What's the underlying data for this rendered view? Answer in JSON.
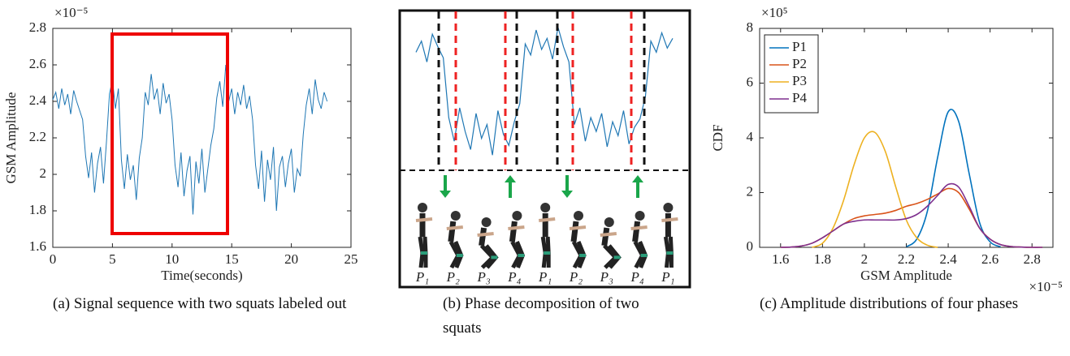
{
  "chart_data": [
    {
      "type": "line",
      "caption": "(a) Signal sequence with two squats labeled out",
      "xlabel": "Time(seconds)",
      "ylabel": "GSM Amplitude",
      "y_multiplier": "×10⁻⁵",
      "xlim": [
        0,
        25
      ],
      "xticks": [
        0,
        5,
        10,
        15,
        20,
        25
      ],
      "ylim": [
        1.6,
        2.8
      ],
      "yticks": [
        1.6,
        1.8,
        2,
        2.2,
        2.4,
        2.6,
        2.8
      ],
      "x": [
        0,
        0.25,
        0.5,
        0.75,
        1,
        1.25,
        1.5,
        1.75,
        2,
        2.25,
        2.5,
        2.75,
        3,
        3.25,
        3.5,
        3.75,
        4,
        4.25,
        4.5,
        4.75,
        5,
        5.25,
        5.5,
        5.75,
        6,
        6.25,
        6.5,
        6.75,
        7,
        7.25,
        7.5,
        7.75,
        8,
        8.25,
        8.5,
        8.75,
        9,
        9.25,
        9.5,
        9.75,
        10,
        10.25,
        10.5,
        10.75,
        11,
        11.25,
        11.5,
        11.75,
        12,
        12.25,
        12.5,
        12.75,
        13,
        13.25,
        13.5,
        13.75,
        14,
        14.25,
        14.5,
        14.75,
        15,
        15.25,
        15.5,
        15.75,
        16,
        16.25,
        16.5,
        16.75,
        17,
        17.25,
        17.5,
        17.75,
        18,
        18.25,
        18.5,
        18.75,
        19,
        19.25,
        19.5,
        19.75,
        20,
        20.25,
        20.5,
        20.75,
        21,
        21.25,
        21.5,
        21.75,
        22,
        22.25,
        22.5,
        22.75,
        23
      ],
      "series": [
        {
          "color": "#1f77b4",
          "values": [
            2.41,
            2.45,
            2.36,
            2.47,
            2.38,
            2.44,
            2.33,
            2.46,
            2.4,
            2.35,
            2.3,
            2.1,
            1.98,
            2.12,
            1.9,
            2.06,
            2.15,
            1.95,
            2.18,
            2.44,
            2.52,
            2.36,
            2.47,
            2.08,
            1.92,
            2.11,
            1.97,
            2.05,
            1.86,
            2.09,
            2.2,
            2.45,
            2.38,
            2.55,
            2.41,
            2.47,
            2.33,
            2.5,
            2.39,
            2.44,
            2.3,
            2.05,
            1.93,
            2.12,
            1.88,
            2.02,
            2.1,
            1.78,
            2.07,
            1.95,
            2.14,
            1.9,
            2.03,
            2.16,
            2.25,
            2.42,
            2.51,
            2.37,
            2.6,
            2.4,
            2.47,
            2.33,
            2.45,
            2.38,
            2.49,
            2.36,
            2.43,
            2.3,
            2.05,
            1.92,
            2.13,
            1.85,
            2.08,
            1.97,
            2.15,
            1.8,
            2.04,
            2.1,
            1.93,
            2.06,
            2.14,
            1.9,
            2.03,
            1.99,
            2.22,
            2.38,
            2.47,
            2.33,
            2.52,
            2.41,
            2.36,
            2.45,
            2.4
          ]
        }
      ]
    },
    {
      "type": "phase",
      "caption": "(b) Phase decomposition of two squats",
      "axes": false,
      "ylim": [
        1.8,
        2.85
      ],
      "color": "#1f77b4",
      "values": [
        2.62,
        2.7,
        2.55,
        2.75,
        2.66,
        2.58,
        2.15,
        1.98,
        2.22,
        2.05,
        1.92,
        2.18,
        2.0,
        2.1,
        1.88,
        2.2,
        2.03,
        1.95,
        2.12,
        2.25,
        2.68,
        2.6,
        2.78,
        2.64,
        2.72,
        2.57,
        2.8,
        2.66,
        2.55,
        2.1,
        2.22,
        1.98,
        2.15,
        2.05,
        2.18,
        1.94,
        2.12,
        2.02,
        2.2,
        1.96,
        2.08,
        2.14,
        2.3,
        2.7,
        2.62,
        2.76,
        2.65,
        2.72
      ],
      "phases": [
        "P₁",
        "P₂",
        "P₃",
        "P₄",
        "P₁",
        "P₂",
        "P₃",
        "P₄",
        "P₁"
      ]
    },
    {
      "type": "smooth-line",
      "caption": "(c) Amplitude distributions of four phases",
      "xlabel": "GSM Amplitude",
      "ylabel": "CDF",
      "x_multiplier": "×10⁻⁵",
      "y_multiplier": "×10⁵",
      "xlim": [
        1.5,
        2.9
      ],
      "xticks": [
        1.6,
        1.8,
        2,
        2.2,
        2.4,
        2.6,
        2.8
      ],
      "ylim": [
        0,
        8
      ],
      "yticks": [
        0,
        2,
        4,
        6,
        8
      ],
      "legend": "top-left",
      "x": [
        1.6,
        1.65,
        1.7,
        1.75,
        1.8,
        1.85,
        1.9,
        1.95,
        2,
        2.05,
        2.1,
        2.15,
        2.2,
        2.25,
        2.3,
        2.35,
        2.4,
        2.45,
        2.5,
        2.55,
        2.6,
        2.65,
        2.7,
        2.75,
        2.8,
        2.85
      ],
      "series": [
        {
          "name": "P1",
          "color": "#0072bd",
          "values": [
            null,
            null,
            null,
            null,
            null,
            null,
            null,
            null,
            null,
            null,
            null,
            null,
            0.02,
            0.3,
            1.3,
            3.3,
            4.95,
            4.6,
            2.7,
            0.9,
            0.2,
            0.02,
            null,
            null,
            null,
            null
          ]
        },
        {
          "name": "P2",
          "color": "#d95319",
          "values": [
            0,
            0.01,
            0.05,
            0.15,
            0.35,
            0.6,
            0.85,
            1.05,
            1.15,
            1.2,
            1.25,
            1.35,
            1.5,
            1.6,
            1.75,
            1.95,
            2.15,
            2.0,
            1.4,
            0.7,
            0.3,
            0.1,
            0.03,
            0.01,
            0,
            0
          ]
        },
        {
          "name": "P3",
          "color": "#edb120",
          "values": [
            null,
            null,
            null,
            0,
            0.15,
            0.7,
            1.7,
            3.0,
            4.0,
            4.2,
            3.5,
            2.2,
            1.0,
            0.35,
            0.08,
            0,
            null,
            null,
            null,
            null,
            null,
            null,
            null,
            null,
            null,
            null
          ]
        },
        {
          "name": "P4",
          "color": "#7e2f8e",
          "values": [
            0,
            0.01,
            0.05,
            0.15,
            0.35,
            0.6,
            0.85,
            0.95,
            1.0,
            1.0,
            1.0,
            1.0,
            1.05,
            1.2,
            1.5,
            1.9,
            2.3,
            2.2,
            1.5,
            0.7,
            0.3,
            0.1,
            0.03,
            0.01,
            0,
            0
          ]
        }
      ]
    }
  ]
}
